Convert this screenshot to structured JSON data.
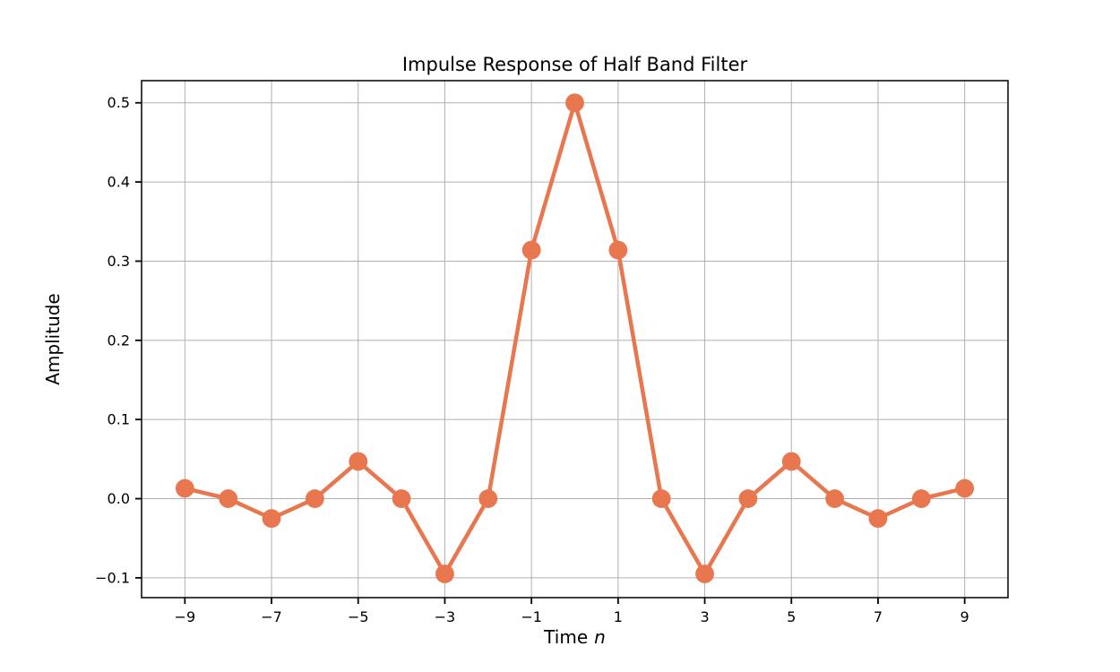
{
  "chart_data": {
    "type": "line",
    "title": "Impulse Response of Half Band Filter",
    "xlabel": "Time n",
    "xlabel_parts": [
      "Time",
      "n"
    ],
    "ylabel": "Amplitude",
    "series": [
      {
        "name": "impulse-response",
        "x": [
          -9,
          -8,
          -7,
          -6,
          -5,
          -4,
          -3,
          -2,
          -1,
          0,
          1,
          2,
          3,
          4,
          5,
          6,
          7,
          8,
          9
        ],
        "y": [
          0.013,
          0.0,
          -0.025,
          0.0,
          0.047,
          0.0,
          -0.095,
          0.0,
          0.314,
          0.5,
          0.314,
          0.0,
          -0.095,
          0.0,
          0.047,
          0.0,
          -0.025,
          0.0,
          0.013
        ],
        "color": "#e8764f",
        "marker": "circle"
      }
    ],
    "xticks": [
      -9,
      -7,
      -5,
      -3,
      -1,
      1,
      3,
      5,
      7,
      9
    ],
    "xtick_labels": [
      "−9",
      "−7",
      "−5",
      "−3",
      "−1",
      "1",
      "3",
      "5",
      "7",
      "9"
    ],
    "yticks": [
      -0.1,
      0.0,
      0.1,
      0.2,
      0.3,
      0.4,
      0.5
    ],
    "ytick_labels": [
      "−0.1",
      "0.0",
      "0.1",
      "0.2",
      "0.3",
      "0.4",
      "0.5"
    ],
    "xlim": [
      -10,
      10
    ],
    "ylim": [
      -0.125,
      0.528
    ],
    "grid": true,
    "legend": "none",
    "grid_color": "#b0b0b0",
    "axis_color": "#000000",
    "text_color": "#000000",
    "background": "#ffffff"
  }
}
